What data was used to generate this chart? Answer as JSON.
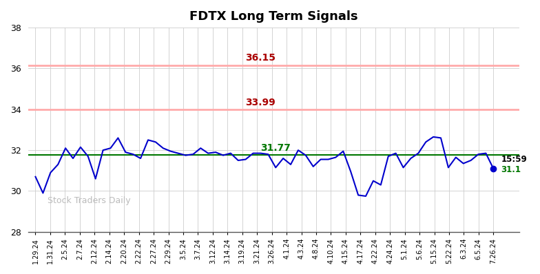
{
  "title": "FDTX Long Term Signals",
  "x_labels": [
    "1.29.24",
    "1.31.24",
    "2.5.24",
    "2.7.24",
    "2.12.24",
    "2.14.24",
    "2.20.24",
    "2.22.24",
    "2.27.24",
    "2.29.24",
    "3.5.24",
    "3.7.24",
    "3.12.24",
    "3.14.24",
    "3.19.24",
    "3.21.24",
    "3.26.24",
    "4.1.24",
    "4.3.24",
    "4.8.24",
    "4.10.24",
    "4.15.24",
    "4.17.24",
    "4.22.24",
    "4.24.24",
    "5.1.24",
    "5.6.24",
    "5.15.24",
    "5.22.24",
    "6.3.24",
    "6.5.24",
    "7.26.24"
  ],
  "y_values": [
    30.7,
    29.9,
    30.9,
    31.3,
    32.1,
    31.6,
    32.15,
    31.7,
    30.6,
    32.0,
    32.1,
    32.6,
    31.9,
    31.8,
    31.6,
    32.5,
    32.4,
    32.1,
    31.95,
    31.85,
    31.75,
    31.8,
    32.1,
    31.85,
    31.9,
    31.75,
    31.85,
    31.5,
    31.55,
    31.85,
    31.85,
    31.8,
    31.15,
    31.6,
    31.3,
    32.0,
    31.75,
    31.2,
    31.55,
    31.55,
    31.65,
    31.95,
    30.95,
    29.8,
    29.75,
    30.5,
    30.3,
    31.7,
    31.85,
    31.15,
    31.6,
    31.85,
    32.4,
    32.65,
    32.6,
    31.15,
    31.65,
    31.35,
    31.5,
    31.8,
    31.85,
    31.1
  ],
  "green_line": 31.77,
  "red_line1": 36.15,
  "red_line2": 33.99,
  "ylim": [
    28,
    38
  ],
  "yticks": [
    28,
    30,
    32,
    34,
    36,
    38
  ],
  "last_price": "31.1",
  "last_time": "15:59",
  "green_label": "31.77",
  "red_label1": "36.15",
  "red_label2": "33.99",
  "watermark": "Stock Traders Daily",
  "line_color": "#0000cc",
  "green_color": "#007700",
  "red_label_color": "#aa0000",
  "red_line_color": "#ffaaaa",
  "last_price_color": "#007700",
  "last_time_color": "#000000",
  "background_color": "#ffffff",
  "grid_color": "#cccccc"
}
